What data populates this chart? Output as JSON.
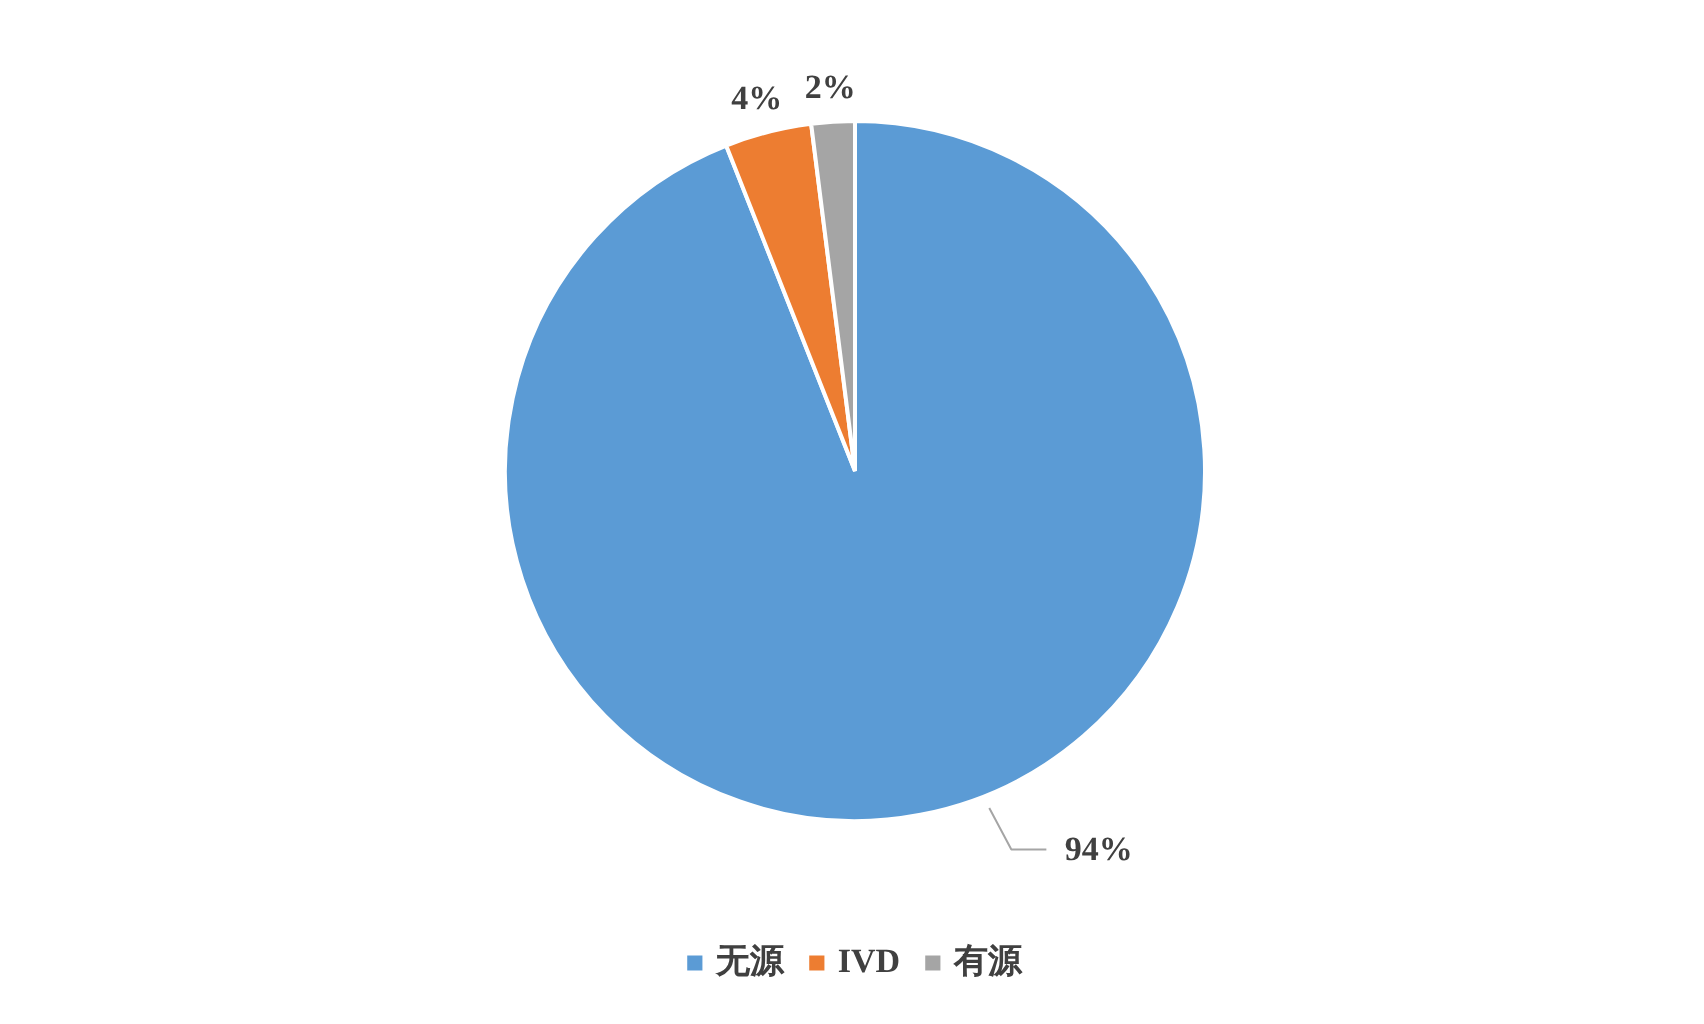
{
  "chart_data": {
    "type": "pie",
    "categories": [
      "无源",
      "IVD",
      "有源"
    ],
    "values": [
      94,
      4,
      2
    ],
    "colors": [
      "#5b9bd5",
      "#ed7d31",
      "#a5a5a5"
    ],
    "value_labels": [
      "94%",
      "4%",
      "2%"
    ],
    "legend": "bottom"
  }
}
